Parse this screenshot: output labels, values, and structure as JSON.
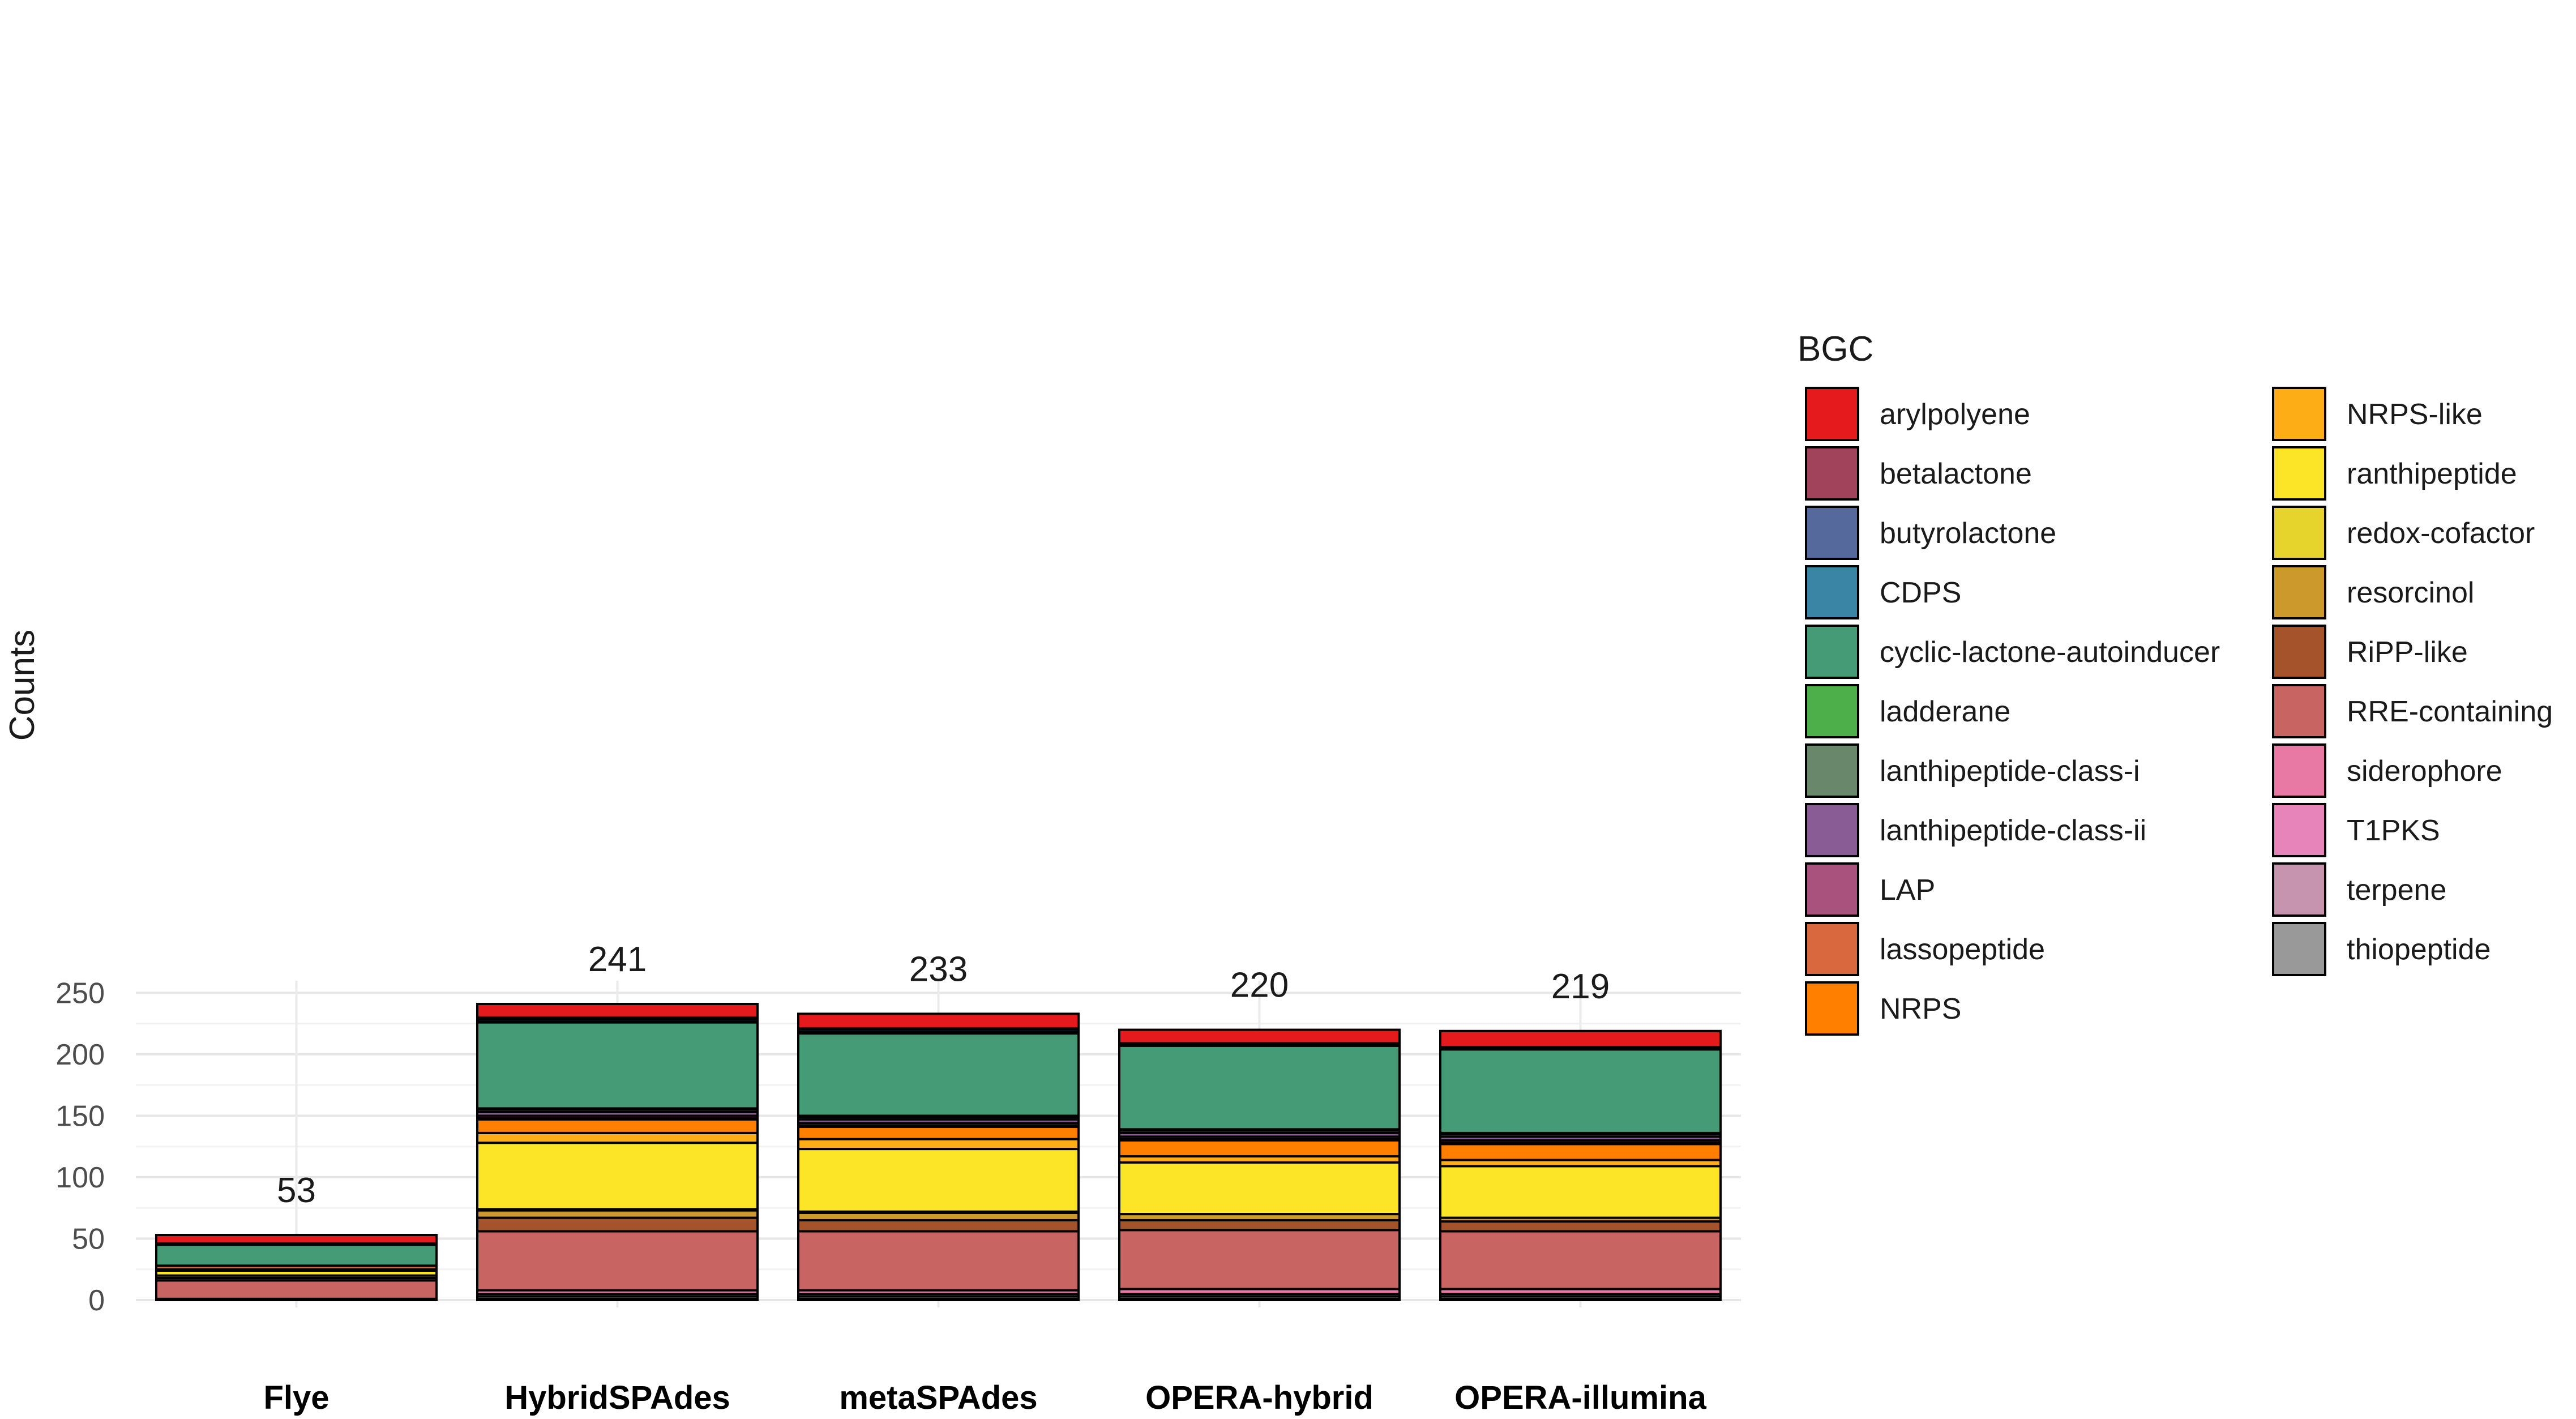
{
  "chart_data": {
    "type": "bar",
    "stacked": true,
    "title": "",
    "xlabel": "",
    "ylabel": "Counts",
    "ylim": [
      0,
      260
    ],
    "yticks": [
      0,
      50,
      100,
      150,
      200,
      250
    ],
    "grid": true,
    "categories": [
      "Flye",
      "HybridSPAdes",
      "metaSPAdes",
      "OPERA-hybrid",
      "OPERA-illumina"
    ],
    "totals": [
      53,
      241,
      233,
      220,
      219
    ],
    "legend": {
      "title": "BGC",
      "placement": "right"
    },
    "series": [
      {
        "name": "thiopeptide",
        "color": "#999999",
        "values": [
          0,
          1,
          1,
          1,
          1
        ]
      },
      {
        "name": "terpene",
        "color": "#C694AE",
        "values": [
          1,
          2,
          2,
          2,
          2
        ]
      },
      {
        "name": "T1PKS",
        "color": "#E785BA",
        "values": [
          0,
          2,
          2,
          2,
          2
        ]
      },
      {
        "name": "siderophore",
        "color": "#E878A4",
        "values": [
          0,
          3,
          3,
          4,
          4
        ]
      },
      {
        "name": "RRE-containing",
        "color": "#C86461",
        "values": [
          15,
          48,
          48,
          48,
          47
        ]
      },
      {
        "name": "RiPP-like",
        "color": "#A5532A",
        "values": [
          2,
          11,
          9,
          8,
          8
        ]
      },
      {
        "name": "resorcinol",
        "color": "#CC992C",
        "values": [
          2,
          6,
          6,
          5,
          3
        ]
      },
      {
        "name": "redox-cofactor",
        "color": "#E6D42C",
        "values": [
          0,
          1,
          1,
          0,
          0
        ]
      },
      {
        "name": "ranthipeptide",
        "color": "#FCE526",
        "values": [
          4,
          54,
          51,
          42,
          42
        ]
      },
      {
        "name": "NRPS-like",
        "color": "#FDAE17",
        "values": [
          1,
          8,
          8,
          5,
          5
        ]
      },
      {
        "name": "NRPS",
        "color": "#FF7F00",
        "values": [
          0,
          11,
          10,
          13,
          13
        ]
      },
      {
        "name": "lassopeptide",
        "color": "#D9683E",
        "values": [
          3,
          1,
          1,
          1,
          1
        ]
      },
      {
        "name": "LAP",
        "color": "#A9527E",
        "values": [
          0,
          2,
          2,
          2,
          2
        ]
      },
      {
        "name": "lanthipeptide-class-ii",
        "color": "#8A5C96",
        "values": [
          0,
          3,
          3,
          3,
          3
        ]
      },
      {
        "name": "lanthipeptide-class-i",
        "color": "#69876B",
        "values": [
          0,
          2,
          2,
          2,
          2
        ]
      },
      {
        "name": "ladderane",
        "color": "#4DAF4A",
        "values": [
          0,
          1,
          1,
          1,
          1
        ]
      },
      {
        "name": "cyclic-lactone-autoinducer",
        "color": "#449B75",
        "values": [
          17,
          70,
          67,
          68,
          68
        ]
      },
      {
        "name": "CDPS",
        "color": "#3A85A6",
        "values": [
          1,
          1,
          1,
          1,
          1
        ]
      },
      {
        "name": "butyrolactone",
        "color": "#55699D",
        "values": [
          0,
          2,
          2,
          0,
          0
        ]
      },
      {
        "name": "betalactone",
        "color": "#A2435C",
        "values": [
          0,
          1,
          1,
          1,
          1
        ]
      },
      {
        "name": "arylpolyene",
        "color": "#E41A1C",
        "values": [
          7,
          11,
          12,
          11,
          13
        ]
      }
    ],
    "legend_order": [
      "arylpolyene",
      "betalactone",
      "butyrolactone",
      "CDPS",
      "cyclic-lactone-autoinducer",
      "ladderane",
      "lanthipeptide-class-i",
      "lanthipeptide-class-ii",
      "LAP",
      "lassopeptide",
      "NRPS",
      "NRPS-like",
      "ranthipeptide",
      "redox-cofactor",
      "resorcinol",
      "RiPP-like",
      "RRE-containing",
      "siderophore",
      "T1PKS",
      "terpene",
      "thiopeptide"
    ]
  }
}
